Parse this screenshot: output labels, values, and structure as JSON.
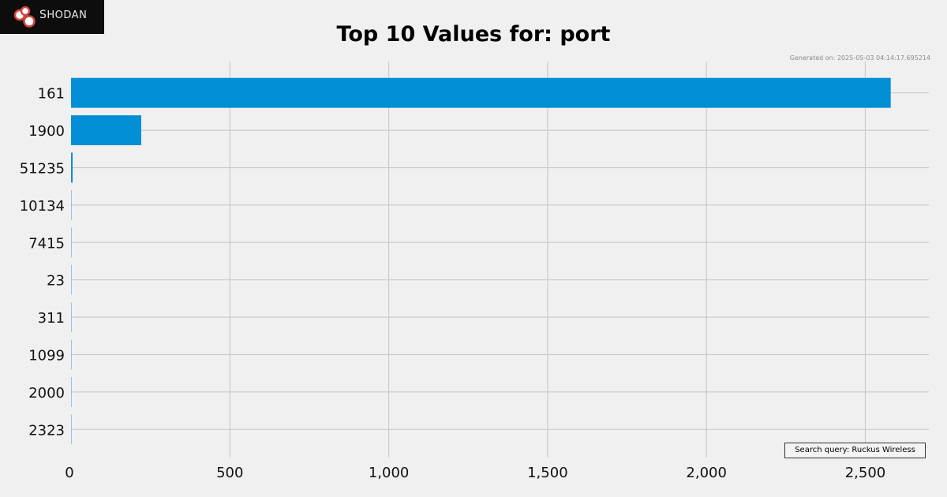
{
  "logo": {
    "text_big": "S",
    "text_rest": "HODAN"
  },
  "header": {
    "title": "Top 10 Values for: port",
    "generated": "Generated on: 2025-05-03 04:14:17.695214"
  },
  "footer": {
    "search_query": "Search query: Ruckus Wireless"
  },
  "colors": {
    "bar": "#038fd6",
    "grid": "#cbcbcb",
    "background": "#f0f0f0"
  },
  "chart_data": {
    "type": "bar",
    "orientation": "horizontal",
    "title": "Top 10 Values for: port",
    "xlabel": "",
    "ylabel": "",
    "categories": [
      "161",
      "1900",
      "51235",
      "10134",
      "7415",
      "23",
      "311",
      "1099",
      "2000",
      "2323"
    ],
    "values": [
      2580,
      221,
      5,
      1,
      1,
      1,
      1,
      1,
      1,
      1
    ],
    "xlim": [
      0,
      2700
    ],
    "x_ticks": [
      0,
      500,
      1000,
      1500,
      2000,
      2500
    ],
    "x_tick_labels": [
      "0",
      "500",
      "1,000",
      "1,500",
      "2,000",
      "2,500"
    ],
    "grid": true,
    "legend": "none"
  }
}
